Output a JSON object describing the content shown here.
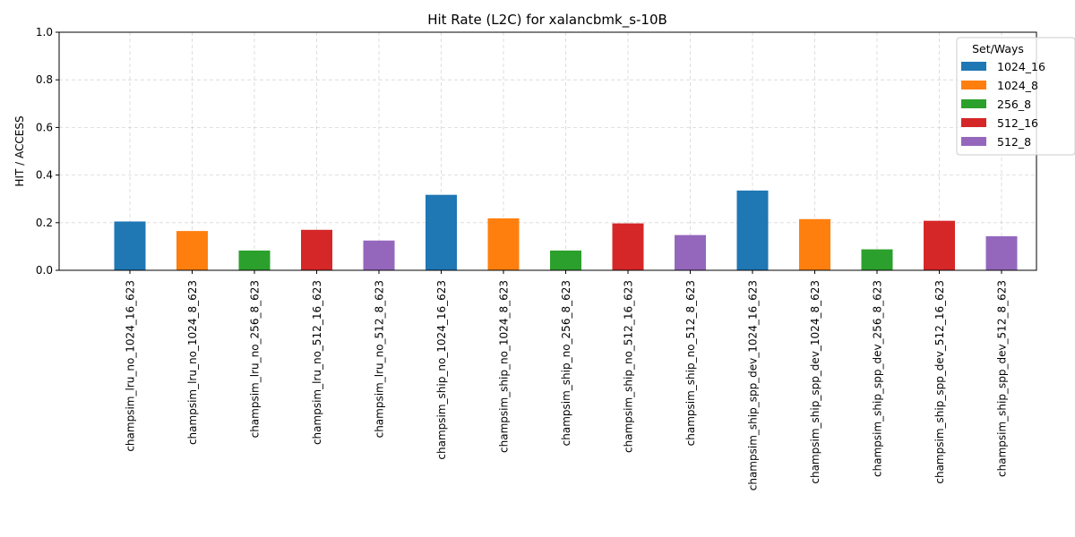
{
  "chart_data": {
    "type": "bar",
    "title": "Hit Rate (L2C) for xalancbmk_s-10B",
    "xlabel": "",
    "ylabel": "HIT / ACCESS",
    "ylim": [
      0,
      1.0
    ],
    "yticks": [
      "0.0",
      "0.2",
      "0.4",
      "0.6",
      "0.8",
      "1.0"
    ],
    "grid": true,
    "legend": {
      "title": "Set/Ways",
      "placement": "top-right",
      "entries": [
        {
          "label": "1024_16",
          "color": "#1f77b4"
        },
        {
          "label": "1024_8",
          "color": "#ff7f0e"
        },
        {
          "label": "256_8",
          "color": "#2ca02c"
        },
        {
          "label": "512_16",
          "color": "#d62728"
        },
        {
          "label": "512_8",
          "color": "#9467bd"
        }
      ]
    },
    "categories": [
      "champsim_lru_no_1024_16_623",
      "champsim_lru_no_1024_8_623",
      "champsim_lru_no_256_8_623",
      "champsim_lru_no_512_16_623",
      "champsim_lru_no_512_8_623",
      "champsim_ship_no_1024_16_623",
      "champsim_ship_no_1024_8_623",
      "champsim_ship_no_256_8_623",
      "champsim_ship_no_512_16_623",
      "champsim_ship_no_512_8_623",
      "champsim_ship_spp_dev_1024_16_623",
      "champsim_ship_spp_dev_1024_8_623",
      "champsim_ship_spp_dev_256_8_623",
      "champsim_ship_spp_dev_512_16_623",
      "champsim_ship_spp_dev_512_8_623"
    ],
    "values": [
      0.205,
      0.165,
      0.083,
      0.17,
      0.125,
      0.317,
      0.218,
      0.083,
      0.197,
      0.148,
      0.335,
      0.215,
      0.088,
      0.208,
      0.143
    ],
    "bar_series": [
      "1024_16",
      "1024_8",
      "256_8",
      "512_16",
      "512_8",
      "1024_16",
      "1024_8",
      "256_8",
      "512_16",
      "512_8",
      "1024_16",
      "1024_8",
      "256_8",
      "512_16",
      "512_8"
    ]
  }
}
